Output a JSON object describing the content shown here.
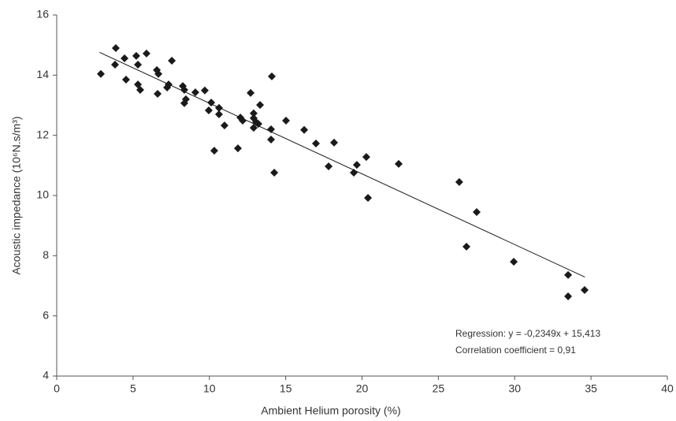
{
  "chart_data": {
    "type": "scatter",
    "xlabel": "Ambient Helium porosity (%)",
    "ylabel": "Acoustic impedance (10⁶N.s/m³)",
    "xlim": [
      0,
      40
    ],
    "xticks": [
      0,
      5,
      10,
      15,
      20,
      25,
      30,
      35,
      40
    ],
    "ylim": [
      4,
      16
    ],
    "yticks": [
      4,
      6,
      8,
      10,
      12,
      14,
      16
    ],
    "grid": false,
    "series": [
      {
        "color": "#1a1a1a",
        "x": [
          3.87,
          3.82,
          4.44,
          4.54,
          2.89,
          5.21,
          5.32,
          5.32,
          5.47,
          5.88,
          6.56,
          6.66,
          6.61,
          7.54,
          7.23,
          7.33,
          8.26,
          8.36,
          8.46,
          8.36,
          9.08,
          9.7,
          10.12,
          9.96,
          10.63,
          10.63,
          10.99,
          10.32,
          11.87,
          12.03,
          12.18,
          12.7,
          12.9,
          12.9,
          13.06,
          12.9,
          13.21,
          13.32,
          14.09,
          14.04,
          14.04,
          14.25,
          15.02,
          16.21,
          16.98,
          17.81,
          18.17,
          19.46,
          19.66,
          20.28,
          20.39,
          22.4,
          26.37,
          26.84,
          27.51,
          29.94,
          33.5,
          33.5,
          34.58
        ],
        "values": [
          14.9,
          14.35,
          14.56,
          13.85,
          14.04,
          14.64,
          14.35,
          13.69,
          13.51,
          14.72,
          14.17,
          14.04,
          13.38,
          14.48,
          13.59,
          13.69,
          13.64,
          13.51,
          13.2,
          13.07,
          13.43,
          13.49,
          13.09,
          12.83,
          12.91,
          12.7,
          12.33,
          11.49,
          11.57,
          12.59,
          12.49,
          13.41,
          12.73,
          12.57,
          12.44,
          12.25,
          12.38,
          13.01,
          13.96,
          12.2,
          11.86,
          10.76,
          12.49,
          12.18,
          11.73,
          10.97,
          11.76,
          10.76,
          11.02,
          11.28,
          9.92,
          11.05,
          10.45,
          8.3,
          9.45,
          7.8,
          7.36,
          6.65,
          6.86
        ]
      }
    ],
    "trendline": {
      "color": "#1a1a1a",
      "x": [
        2.8,
        34.6
      ],
      "y": [
        14.76,
        7.29
      ]
    },
    "annotations": [
      "Regression:   y = -0,2349x + 15,413",
      "Correlation coefficient = 0,91"
    ]
  }
}
